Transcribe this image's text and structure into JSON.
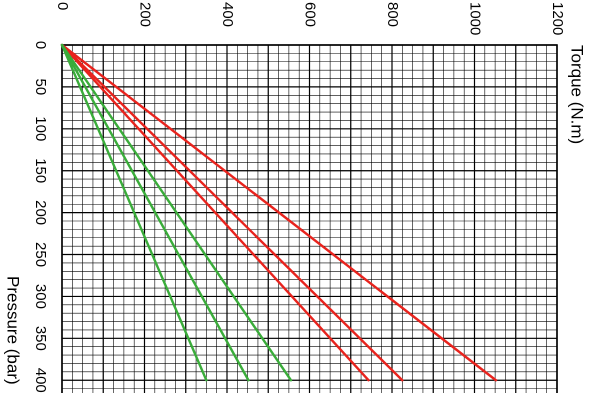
{
  "chart_data": {
    "type": "line",
    "orientation": "rotated-90-cw",
    "xlabel": "Pressure (bar)",
    "ylabel": "Torque (N.m)",
    "xlim": [
      0,
      420
    ],
    "ylim": [
      0,
      1200
    ],
    "xticks": [
      0,
      50,
      100,
      150,
      200,
      250,
      300,
      350,
      400
    ],
    "yticks": [
      0,
      200,
      400,
      600,
      800,
      1000,
      1200
    ],
    "grid": true,
    "colors": {
      "red": "#e8231d",
      "green": "#3aac3a"
    },
    "series": [
      {
        "color": "red",
        "x": [
          0,
          400
        ],
        "y": [
          0,
          1052
        ]
      },
      {
        "color": "red",
        "x": [
          0,
          400
        ],
        "y": [
          0,
          825
        ]
      },
      {
        "color": "red",
        "x": [
          0,
          400
        ],
        "y": [
          0,
          743
        ]
      },
      {
        "color": "green",
        "x": [
          0,
          400
        ],
        "y": [
          0,
          555
        ]
      },
      {
        "color": "green",
        "x": [
          0,
          400
        ],
        "y": [
          0,
          452
        ]
      },
      {
        "color": "green",
        "x": [
          0,
          400
        ],
        "y": [
          0,
          350
        ]
      }
    ]
  }
}
